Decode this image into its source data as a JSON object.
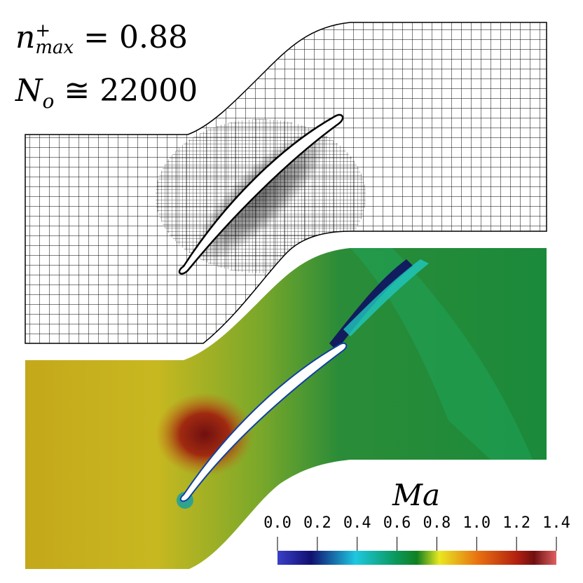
{
  "annotations": {
    "nmax": {
      "var": "n",
      "sup": "+",
      "sub": "max",
      "relation": "=",
      "value": "0.88"
    },
    "no": {
      "var": "N",
      "sub": "o",
      "relation": "≅",
      "value": "22000"
    }
  },
  "colorbar": {
    "title": "Ma",
    "ticks": [
      "0.0",
      "0.2",
      "0.4",
      "0.6",
      "0.8",
      "1.0",
      "1.2",
      "1.4"
    ],
    "range": [
      0.0,
      1.4
    ],
    "stops": [
      "#3a3fc8",
      "#101070",
      "#1ec8e0",
      "#0a9a60",
      "#108020",
      "#e8e820",
      "#e87010",
      "#b02010",
      "#701010",
      "#e06060"
    ]
  },
  "panels": {
    "mesh": {
      "description_color": "#000000"
    },
    "mach_field": {
      "colors": {
        "inlet": "#c8b820",
        "high": "#801818",
        "passage": "#1a8a3a",
        "shock": "#20c8c0"
      }
    }
  }
}
